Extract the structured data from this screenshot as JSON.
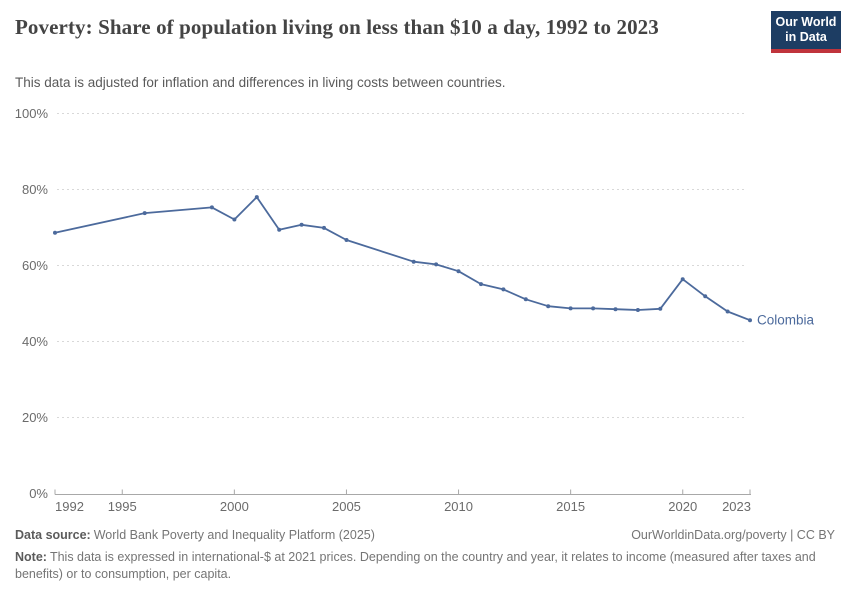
{
  "header": {
    "title": "Poverty: Share of population living on less than $10 a day, 1992 to 2023",
    "subtitle": "This data is adjusted for inflation and differences in living costs between countries.",
    "logo_line1": "Our World",
    "logo_line2": "in Data"
  },
  "chart_data": {
    "type": "line",
    "title": "Poverty: Share of population living on less than $10 a day, 1992 to 2023",
    "xlabel": "",
    "ylabel": "",
    "xlim": [
      1992,
      2023
    ],
    "ylim": [
      0,
      100
    ],
    "grid": "horizontal-dashed",
    "legend_position": "line-end-label",
    "x_ticks": [
      1992,
      1995,
      2000,
      2005,
      2010,
      2015,
      2020,
      2023
    ],
    "y_ticks": [
      0,
      20,
      40,
      60,
      80,
      100
    ],
    "y_tick_suffix": "%",
    "series": [
      {
        "name": "Colombia",
        "color": "#4c6a9c",
        "points": [
          [
            1992,
            68.6
          ],
          [
            1996,
            73.8
          ],
          [
            1999,
            75.3
          ],
          [
            2000,
            72.1
          ],
          [
            2001,
            78
          ],
          [
            2002,
            69.4
          ],
          [
            2003,
            70.7
          ],
          [
            2004,
            69.9
          ],
          [
            2005,
            66.7
          ],
          [
            2008,
            61
          ],
          [
            2009,
            60.3
          ],
          [
            2010,
            58.5
          ],
          [
            2011,
            55.1
          ],
          [
            2012,
            53.7
          ],
          [
            2013,
            51.1
          ],
          [
            2014,
            49.3
          ],
          [
            2015,
            48.7
          ],
          [
            2016,
            48.7
          ],
          [
            2017,
            48.5
          ],
          [
            2018,
            48.3
          ],
          [
            2019,
            48.6
          ],
          [
            2020,
            56.4
          ],
          [
            2021,
            51.9
          ],
          [
            2022,
            47.9
          ],
          [
            2023,
            45.6
          ]
        ]
      }
    ]
  },
  "footer": {
    "data_source_label": "Data source:",
    "data_source": "World Bank Poverty and Inequality Platform (2025)",
    "attribution": "OurWorldinData.org/poverty | CC BY",
    "note_label": "Note:",
    "note": "This data is expressed in international-$ at 2021 prices. Depending on the country and year, it relates to income (measured after taxes and benefits) or to consumption, per capita."
  },
  "colors": {
    "series_blue": "#4c6a9c",
    "logo_navy": "#1d3d63",
    "logo_red": "#c0343c",
    "gridline": "#d8d8d8",
    "axis": "#a8a8a8",
    "tick_text": "#6b6b6b"
  }
}
